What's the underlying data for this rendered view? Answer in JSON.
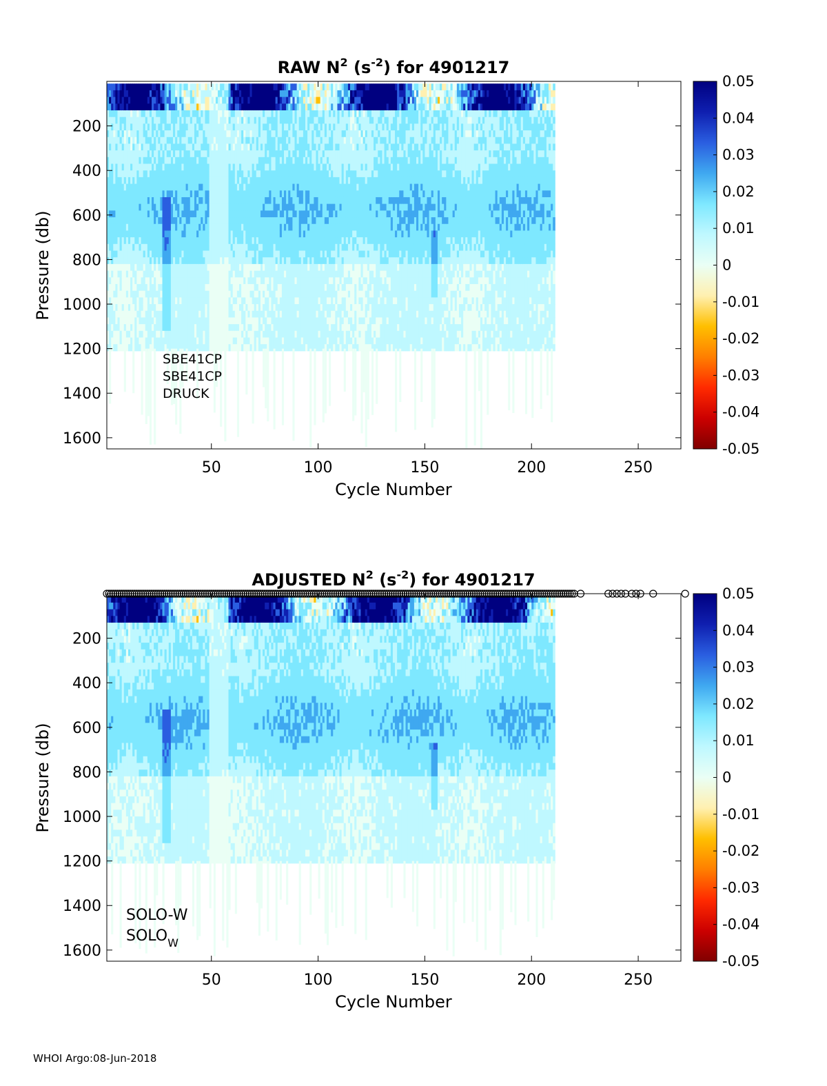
{
  "footer": "WHOI Argo:08-Jun-2018",
  "colors": {
    "colormap": [
      "#800000",
      "#cc0000",
      "#ff2a00",
      "#ff7f00",
      "#ffbf00",
      "#fff0b0",
      "#eafff5",
      "#bff8ff",
      "#7ee8ff",
      "#3fa8f0",
      "#2a5ee0",
      "#0f1fb0",
      "#000080"
    ],
    "marker": "#000000",
    "axis": "#000000"
  },
  "chart_data": [
    {
      "type": "heatmap",
      "title": "RAW N",
      "title_superscript": "2",
      "title_unit_open": " (s",
      "title_unit_sup": "-2",
      "title_rest": ") for 4901217",
      "xlabel": "Cycle Number",
      "ylabel": "Pressure (db)",
      "xlim": [
        1,
        270
      ],
      "ylim": [
        0,
        1650
      ],
      "y_reversed": true,
      "xticks": [
        "50",
        "100",
        "150",
        "200",
        "250"
      ],
      "yticks": [
        "200",
        "400",
        "600",
        "800",
        "1000",
        "1200",
        "1400",
        "1600"
      ],
      "colorbar": {
        "range": [
          -0.05,
          0.05
        ],
        "ticks": [
          "0.05",
          "0.04",
          "0.03",
          "0.02",
          "0.01",
          "0",
          "-0.01",
          "-0.02",
          "-0.03",
          "-0.04",
          "-0.05"
        ]
      },
      "data_extent": {
        "last_cycle": 210,
        "max_pressure_main": 1200,
        "max_pressure_deep": 1650
      },
      "annotations": [
        "SBE41CP",
        "SBE41CP",
        "DRUCK"
      ]
    },
    {
      "type": "heatmap",
      "title": "ADJUSTED N",
      "title_superscript": "2",
      "title_unit_open": " (s",
      "title_unit_sup": "-2",
      "title_rest": ") for 4901217",
      "xlabel": "Cycle Number",
      "ylabel": "Pressure (db)",
      "xlim": [
        1,
        270
      ],
      "ylim": [
        0,
        1650
      ],
      "y_reversed": true,
      "xticks": [
        "50",
        "100",
        "150",
        "200",
        "250"
      ],
      "yticks": [
        "200",
        "400",
        "600",
        "800",
        "1000",
        "1200",
        "1400",
        "1600"
      ],
      "colorbar": {
        "range": [
          -0.05,
          0.05
        ],
        "ticks": [
          "0.05",
          "0.04",
          "0.03",
          "0.02",
          "0.01",
          "0",
          "-0.01",
          "-0.02",
          "-0.03",
          "-0.04",
          "-0.05"
        ]
      },
      "data_extent": {
        "last_cycle": 210,
        "max_pressure_main": 1200,
        "max_pressure_deep": 1650
      },
      "marker_cycles_extra": [
        223,
        236,
        238,
        240,
        242,
        244,
        247,
        249,
        251,
        257,
        272
      ],
      "annotations": [
        "SOLO-W",
        "SOLO",
        "W"
      ]
    }
  ]
}
